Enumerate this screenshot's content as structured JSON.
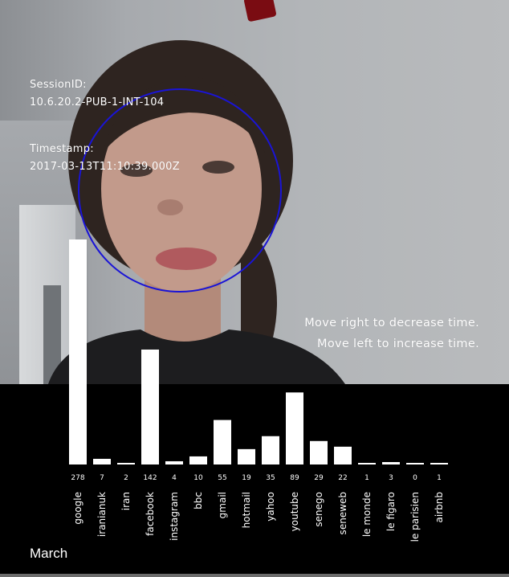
{
  "session": {
    "label": "SessionID:",
    "value": "10.6.20.2-PUB-1-INT-104"
  },
  "timestamp": {
    "label": "Timestamp:",
    "value": "2017-03-13T11:10:39.000Z"
  },
  "hints": {
    "right": "Move right to decrease time.",
    "left": "Move left to increase time."
  },
  "month": "March",
  "colors": {
    "bar": "#ffffff",
    "ring": "#1a14d6",
    "panel": "#000000"
  },
  "chart_data": {
    "type": "bar",
    "title": "",
    "xlabel": "",
    "ylabel": "",
    "ylim": [
      0,
      278
    ],
    "categories": [
      "google",
      "iranianuk",
      "iran",
      "facebook",
      "instagram",
      "bbc",
      "gmail",
      "hotmail",
      "yahoo",
      "youtube",
      "senego",
      "seneweb",
      "le monde",
      "le figaro",
      "le parisien",
      "airbnb"
    ],
    "values": [
      278,
      7,
      2,
      142,
      4,
      10,
      55,
      19,
      35,
      89,
      29,
      22,
      1,
      3,
      0,
      1
    ]
  }
}
